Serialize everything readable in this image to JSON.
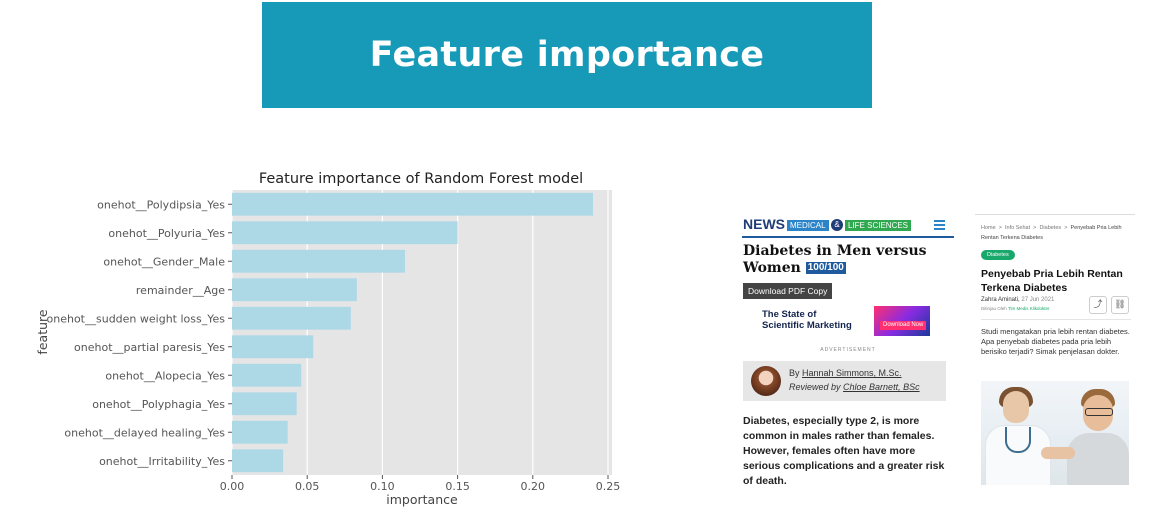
{
  "banner": {
    "title": "Feature importance"
  },
  "chart_data": {
    "type": "bar",
    "orientation": "horizontal",
    "title": "Feature importance of Random Forest model",
    "xlabel": "importance",
    "ylabel": "feature",
    "categories": [
      "onehot__Polydipsia_Yes",
      "onehot__Polyuria_Yes",
      "onehot__Gender_Male",
      "remainder__Age",
      "onehot__sudden weight loss_Yes",
      "onehot__partial paresis_Yes",
      "onehot__Alopecia_Yes",
      "onehot__Polyphagia_Yes",
      "onehot__delayed healing_Yes",
      "onehot__Irritability_Yes"
    ],
    "values": [
      0.24,
      0.15,
      0.115,
      0.083,
      0.079,
      0.054,
      0.046,
      0.043,
      0.037,
      0.034
    ],
    "xlim": [
      0,
      0.25
    ],
    "xticks": [
      "0.00",
      "0.05",
      "0.10",
      "0.15",
      "0.20",
      "0.25"
    ],
    "grid": true,
    "colors": {
      "bar": "#add8e6",
      "background": "#e5e5e5",
      "grid": "#ffffff"
    }
  },
  "news_card": {
    "logo": "NEWS",
    "tag1": "MEDICAL",
    "amp": "&",
    "tag2": "LIFE SCIENCES",
    "title": "Diabetes in Men versus Women",
    "score": "100/100",
    "pdf_button": "Download PDF Copy",
    "ad_text_1": "The State of",
    "ad_text_2": "Scientific Marketing",
    "ad_button": "Download Now",
    "ad_label": "ADVERTISEMENT",
    "by_prefix": "By ",
    "author": "Hannah Simmons, M.Sc.",
    "reviewed_prefix": "Reviewed by ",
    "reviewer": "Chloe Barnett, BSc",
    "lead": "Diabetes, especially type 2, is more common in males rather than females. However, females often have more serious complications and a greater risk of death."
  },
  "health_card": {
    "crumb_1": "Home",
    "crumb_2": "Info Sehat",
    "crumb_3": "Diabetes",
    "crumb_4": "Penyebab Pria Lebih Rentan Terkena Diabetes",
    "sep": ">",
    "category": "Diabetes",
    "title": "Penyebab Pria Lebih Rentan Terkena Diabetes",
    "author": "Zahra Aminati,",
    "date": "27 Jun 2021",
    "review_prefix": "Ditinjau Oleh",
    "reviewer": "Tim Medis Klikdokter",
    "desc": "Studi mengatakan pria lebih rentan diabetes. Apa penyebab diabetes pada pria lebih berisiko terjadi? Simak penjelasan dokter.",
    "share_icon": "share-icon",
    "link_icon": "link-icon"
  }
}
